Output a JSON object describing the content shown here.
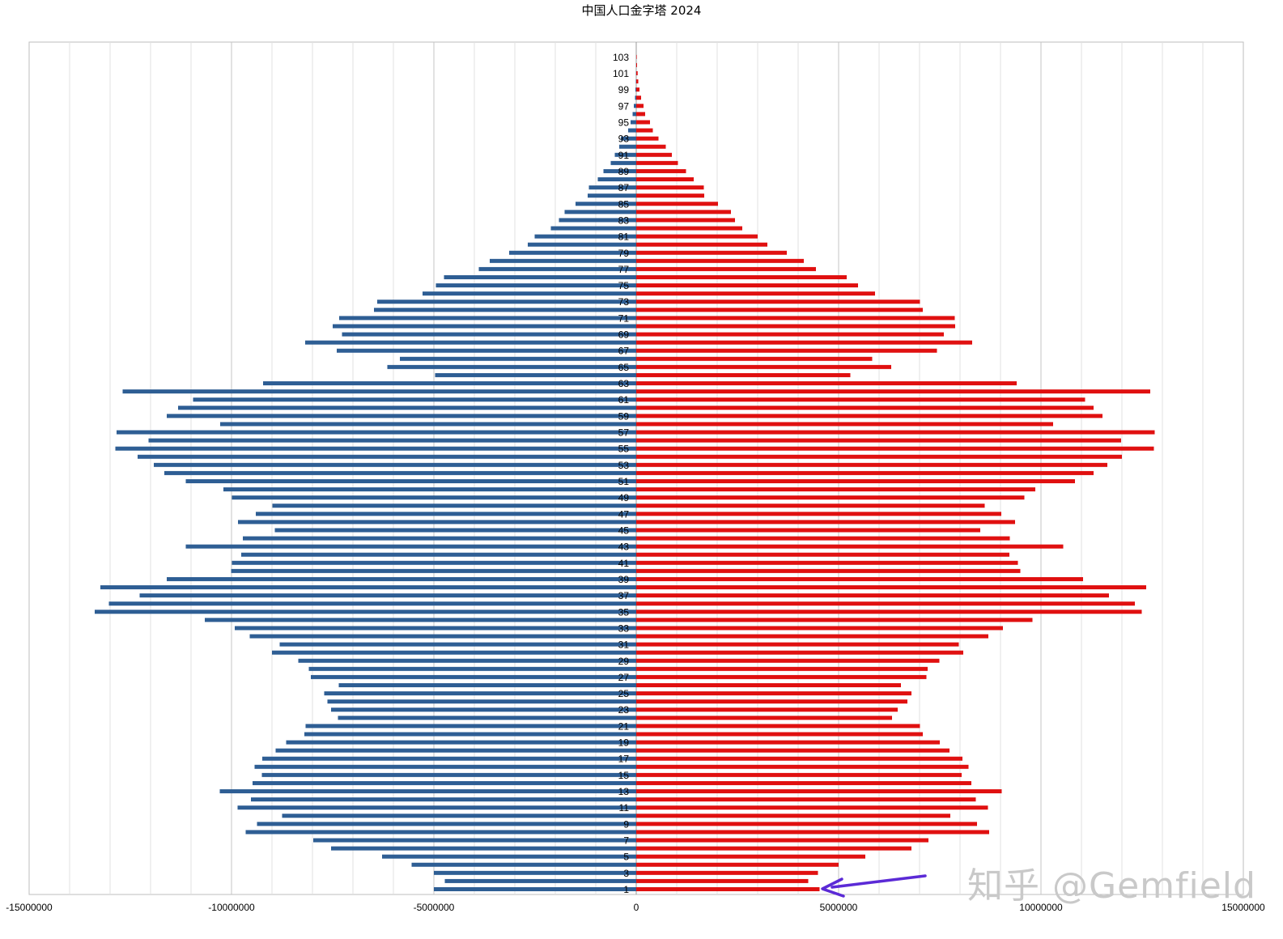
{
  "chart_data": {
    "type": "bar",
    "title": "中国人口金字塔 2024",
    "xlim": [
      -15000000,
      15000000
    ],
    "x_ticks": [
      -15000000,
      -10000000,
      -5000000,
      0,
      5000000,
      10000000,
      15000000
    ],
    "x_tick_labels": [
      "-15000000",
      "-10000000",
      "-5000000",
      "0",
      "5000000",
      "10000000",
      "15000000"
    ],
    "grid": true,
    "y_tick_labels": [
      "1",
      "3",
      "5",
      "7",
      "9",
      "11",
      "13",
      "15",
      "17",
      "19",
      "21",
      "23",
      "25",
      "27",
      "29",
      "31",
      "33",
      "35",
      "37",
      "39",
      "41",
      "43",
      "45",
      "47",
      "49",
      "51",
      "53",
      "55",
      "57",
      "59",
      "61",
      "63",
      "65",
      "67",
      "69",
      "71",
      "73",
      "75",
      "77",
      "79",
      "81",
      "83",
      "85",
      "87",
      "89",
      "91",
      "93",
      "95",
      "97",
      "99",
      "101",
      "103"
    ],
    "ages": [
      1,
      2,
      3,
      4,
      5,
      6,
      7,
      8,
      9,
      10,
      11,
      12,
      13,
      14,
      15,
      16,
      17,
      18,
      19,
      20,
      21,
      22,
      23,
      24,
      25,
      26,
      27,
      28,
      29,
      30,
      31,
      32,
      33,
      34,
      35,
      36,
      37,
      38,
      39,
      40,
      41,
      42,
      43,
      44,
      45,
      46,
      47,
      48,
      49,
      50,
      51,
      52,
      53,
      54,
      55,
      56,
      57,
      58,
      59,
      60,
      61,
      62,
      63,
      64,
      65,
      66,
      67,
      68,
      69,
      70,
      71,
      72,
      73,
      74,
      75,
      76,
      77,
      78,
      79,
      80,
      81,
      82,
      83,
      84,
      85,
      86,
      87,
      88,
      89,
      90,
      91,
      92,
      93,
      94,
      95,
      96,
      97,
      98,
      99,
      100,
      101,
      102,
      103
    ],
    "series": [
      {
        "color": "#2e5e94",
        "values": [
          -5000000,
          -4730000,
          -5000000,
          -5550000,
          -6280000,
          -7540000,
          -7980000,
          -9650000,
          -9370000,
          -8750000,
          -9850000,
          -9520000,
          -10290000,
          -9480000,
          -9250000,
          -9430000,
          -9240000,
          -8910000,
          -8650000,
          -8200000,
          -8170000,
          -7370000,
          -7540000,
          -7630000,
          -7710000,
          -7350000,
          -8040000,
          -8090000,
          -8350000,
          -9000000,
          -8810000,
          -9550000,
          -9920000,
          -10660000,
          -13380000,
          -13030000,
          -12270000,
          -13240000,
          -11600000,
          -10010000,
          -9990000,
          -9760000,
          -11130000,
          -9720000,
          -8930000,
          -9840000,
          -9400000,
          -8990000,
          -9990000,
          -10200000,
          -11130000,
          -11660000,
          -11920000,
          -12320000,
          -12870000,
          -12050000,
          -12840000,
          -10280000,
          -11600000,
          -11320000,
          -10950000,
          -12690000,
          -9220000,
          -4970000,
          -6150000,
          -5840000,
          -7400000,
          -8180000,
          -7270000,
          -7500000,
          -7340000,
          -6480000,
          -6400000,
          -5280000,
          -4950000,
          -4750000,
          -3890000,
          -3620000,
          -3140000,
          -2680000,
          -2510000,
          -2110000,
          -1910000,
          -1770000,
          -1500000,
          -1200000,
          -1170000,
          -950000,
          -810000,
          -630000,
          -530000,
          -420000,
          -380000,
          -200000,
          -140000,
          -90000,
          -60000,
          -30000,
          -20000,
          -10000,
          -5000,
          -3000,
          -1000
        ]
      },
      {
        "color": "#e01010",
        "values": [
          4530000,
          4250000,
          4490000,
          5000000,
          5660000,
          6800000,
          7220000,
          8720000,
          8420000,
          7760000,
          8690000,
          8390000,
          9030000,
          8280000,
          8040000,
          8210000,
          8060000,
          7740000,
          7500000,
          7080000,
          7010000,
          6320000,
          6460000,
          6700000,
          6800000,
          6540000,
          7170000,
          7200000,
          7490000,
          8080000,
          7970000,
          8700000,
          9060000,
          9790000,
          12490000,
          12320000,
          11680000,
          12600000,
          11040000,
          9490000,
          9430000,
          9220000,
          10550000,
          9230000,
          8500000,
          9360000,
          9020000,
          8610000,
          9590000,
          9860000,
          10840000,
          11300000,
          11640000,
          12000000,
          12790000,
          11980000,
          12810000,
          10300000,
          11520000,
          11300000,
          11090000,
          12700000,
          9400000,
          5290000,
          6300000,
          5830000,
          7430000,
          8300000,
          7600000,
          7880000,
          7870000,
          7080000,
          7010000,
          5900000,
          5480000,
          5200000,
          4440000,
          4140000,
          3720000,
          3240000,
          3000000,
          2620000,
          2440000,
          2340000,
          2020000,
          1680000,
          1670000,
          1420000,
          1230000,
          1030000,
          880000,
          730000,
          550000,
          410000,
          340000,
          220000,
          180000,
          120000,
          80000,
          50000,
          35000,
          20000,
          10000
        ]
      }
    ]
  },
  "watermark": "知乎 @Gemfield"
}
